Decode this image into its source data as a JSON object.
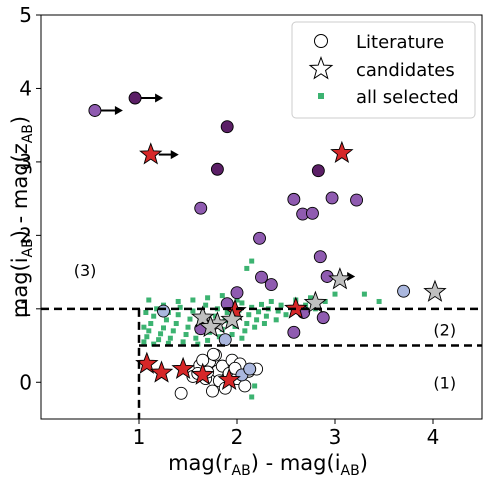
{
  "chart_data": {
    "type": "scatter",
    "xlabel_main": "mag(r",
    "xlabel_sub1": "AB",
    "xlabel_mid": ") - mag(i",
    "xlabel_sub2": "AB",
    "xlabel_end": ")",
    "ylabel_main": "mag(i",
    "ylabel_sub1": "AB",
    "ylabel_mid": ") - mag(z",
    "ylabel_sub2": "AB",
    "ylabel_end": ")",
    "xlim": [
      0,
      4.5
    ],
    "ylim": [
      -0.5,
      5
    ],
    "xticks": [
      1,
      2,
      3,
      4
    ],
    "yticks": [
      0,
      1,
      2,
      3,
      4,
      5
    ],
    "grid": false,
    "legend_position": "top-right",
    "legend": [
      {
        "label": "Literature",
        "marker": "circle"
      },
      {
        "label": "candidates",
        "marker": "star"
      },
      {
        "label": "all selected",
        "marker": "square"
      }
    ],
    "region_labels": [
      {
        "text": "(1)",
        "x": 4.12,
        "y": 0.0
      },
      {
        "text": "(2)",
        "x": 4.12,
        "y": 0.72
      },
      {
        "text": "(3)",
        "x": 0.45,
        "y": 1.53
      }
    ],
    "selection_boundaries": {
      "vertical_x": 1.0,
      "horizontal_y1": 0.5,
      "horizontal_y2": 1.0
    },
    "colors": {
      "all_selected": "#3cb371",
      "star_red": "#d62728",
      "star_grey": "#bfbfbf",
      "literature_fill": "#ffffff",
      "purple_light": "#8f5bb0",
      "purple_dark": "#5b1f66",
      "blue_light": "#aab7de"
    },
    "series": [
      {
        "name": "Literature",
        "marker": "circle",
        "points": [
          {
            "x": 1.43,
            "y": -0.15,
            "color": "#ffffff"
          },
          {
            "x": 1.55,
            "y": 0.08,
            "color": "#ffffff"
          },
          {
            "x": 1.62,
            "y": 0.23,
            "color": "#ffffff"
          },
          {
            "x": 1.68,
            "y": 0.05,
            "color": "#ffffff"
          },
          {
            "x": 1.72,
            "y": 0.28,
            "color": "#ffffff"
          },
          {
            "x": 1.75,
            "y": -0.12,
            "color": "#ffffff"
          },
          {
            "x": 1.78,
            "y": 0.37,
            "color": "#ffffff"
          },
          {
            "x": 1.8,
            "y": 0.15,
            "color": "#ffffff"
          },
          {
            "x": 1.82,
            "y": 0.02,
            "color": "#ffffff"
          },
          {
            "x": 1.85,
            "y": 0.22,
            "color": "#ffffff"
          },
          {
            "x": 1.88,
            "y": -0.08,
            "color": "#ffffff"
          },
          {
            "x": 1.92,
            "y": 0.12,
            "color": "#ffffff"
          },
          {
            "x": 1.95,
            "y": 0.3,
            "color": "#ffffff"
          },
          {
            "x": 2.0,
            "y": 0.05,
            "color": "#ffffff"
          },
          {
            "x": 2.03,
            "y": 0.25,
            "color": "#ffffff"
          },
          {
            "x": 2.08,
            "y": -0.05,
            "color": "#ffffff"
          },
          {
            "x": 2.12,
            "y": 0.15,
            "color": "#ffffff"
          },
          {
            "x": 2.2,
            "y": 0.18,
            "color": "#ffffff"
          },
          {
            "x": 1.7,
            "y": 0.14,
            "color": "#ffffff"
          },
          {
            "x": 1.98,
            "y": 0.19,
            "color": "#ffffff"
          },
          {
            "x": 1.76,
            "y": 0.38,
            "color": "#ffffff"
          },
          {
            "x": 1.65,
            "y": 0.3,
            "color": "#ffffff"
          },
          {
            "x": 1.6,
            "y": 0.12,
            "color": "#ffffff"
          }
        ]
      },
      {
        "name": "candidates",
        "marker": "star",
        "points": [
          {
            "x": 1.08,
            "y": 0.25,
            "color": "#d62728"
          },
          {
            "x": 1.23,
            "y": 0.13,
            "color": "#d62728"
          },
          {
            "x": 1.45,
            "y": 0.18,
            "color": "#d62728"
          },
          {
            "x": 1.65,
            "y": 0.1,
            "color": "#d62728"
          },
          {
            "x": 1.92,
            "y": 0.03,
            "color": "#d62728"
          },
          {
            "x": 1.98,
            "y": 0.97,
            "color": "#d62728"
          },
          {
            "x": 2.6,
            "y": 1.0,
            "color": "#d62728"
          },
          {
            "x": 1.12,
            "y": 3.1,
            "color": "#d62728"
          },
          {
            "x": 3.07,
            "y": 3.12,
            "color": "#d62728"
          },
          {
            "x": 1.65,
            "y": 0.88,
            "color": "#bfbfbf"
          },
          {
            "x": 1.8,
            "y": 0.8,
            "color": "#bfbfbf"
          },
          {
            "x": 1.95,
            "y": 0.85,
            "color": "#bfbfbf"
          },
          {
            "x": 1.73,
            "y": 0.75,
            "color": "#bfbfbf"
          },
          {
            "x": 2.8,
            "y": 1.08,
            "color": "#bfbfbf"
          },
          {
            "x": 3.05,
            "y": 1.4,
            "color": "#bfbfbf"
          },
          {
            "x": 4.02,
            "y": 1.23,
            "color": "#bfbfbf"
          }
        ]
      },
      {
        "name": "all selected",
        "marker": "square",
        "points": [
          {
            "x": 1.05,
            "y": 0.55
          },
          {
            "x": 1.08,
            "y": 0.62
          },
          {
            "x": 1.1,
            "y": 0.7
          },
          {
            "x": 1.12,
            "y": 0.8
          },
          {
            "x": 1.15,
            "y": 0.9
          },
          {
            "x": 1.18,
            "y": 1.0
          },
          {
            "x": 1.2,
            "y": 0.58
          },
          {
            "x": 1.22,
            "y": 0.66
          },
          {
            "x": 1.25,
            "y": 0.74
          },
          {
            "x": 1.28,
            "y": 0.85
          },
          {
            "x": 1.3,
            "y": 0.95
          },
          {
            "x": 1.32,
            "y": 0.6
          },
          {
            "x": 1.35,
            "y": 0.7
          },
          {
            "x": 1.38,
            "y": 0.8
          },
          {
            "x": 1.4,
            "y": 0.92
          },
          {
            "x": 1.42,
            "y": 1.02
          },
          {
            "x": 1.45,
            "y": 0.55
          },
          {
            "x": 1.48,
            "y": 0.65
          },
          {
            "x": 1.5,
            "y": 0.75
          },
          {
            "x": 1.52,
            "y": 0.86
          },
          {
            "x": 1.55,
            "y": 0.97
          },
          {
            "x": 1.58,
            "y": 0.6
          },
          {
            "x": 1.6,
            "y": 0.7
          },
          {
            "x": 1.62,
            "y": 0.82
          },
          {
            "x": 1.65,
            "y": 0.93
          },
          {
            "x": 1.68,
            "y": 1.05
          },
          {
            "x": 1.7,
            "y": 0.57
          },
          {
            "x": 1.72,
            "y": 0.68
          },
          {
            "x": 1.75,
            "y": 0.78
          },
          {
            "x": 1.78,
            "y": 0.9
          },
          {
            "x": 1.8,
            "y": 1.0
          },
          {
            "x": 1.82,
            "y": 0.62
          },
          {
            "x": 1.85,
            "y": 0.72
          },
          {
            "x": 1.88,
            "y": 0.84
          },
          {
            "x": 1.9,
            "y": 0.95
          },
          {
            "x": 1.92,
            "y": 1.05
          },
          {
            "x": 1.95,
            "y": 0.65
          },
          {
            "x": 1.98,
            "y": 0.76
          },
          {
            "x": 2.0,
            "y": 0.88
          },
          {
            "x": 2.02,
            "y": 0.98
          },
          {
            "x": 2.05,
            "y": 1.08
          },
          {
            "x": 2.08,
            "y": 0.7
          },
          {
            "x": 2.1,
            "y": 0.8
          },
          {
            "x": 2.12,
            "y": 0.92
          },
          {
            "x": 2.15,
            "y": 1.02
          },
          {
            "x": 2.18,
            "y": 0.75
          },
          {
            "x": 2.2,
            "y": 0.85
          },
          {
            "x": 2.22,
            "y": 0.96
          },
          {
            "x": 2.25,
            "y": 1.06
          },
          {
            "x": 2.28,
            "y": 0.8
          },
          {
            "x": 2.3,
            "y": 0.9
          },
          {
            "x": 2.32,
            "y": 1.0
          },
          {
            "x": 2.35,
            "y": 1.1
          },
          {
            "x": 2.4,
            "y": 0.85
          },
          {
            "x": 2.42,
            "y": 0.97
          },
          {
            "x": 2.45,
            "y": 1.05
          },
          {
            "x": 2.5,
            "y": 0.92
          },
          {
            "x": 2.55,
            "y": 1.02
          },
          {
            "x": 2.6,
            "y": 1.12
          },
          {
            "x": 2.65,
            "y": 0.95
          },
          {
            "x": 2.7,
            "y": 1.05
          },
          {
            "x": 2.75,
            "y": 1.15
          },
          {
            "x": 2.8,
            "y": 1.0
          },
          {
            "x": 2.9,
            "y": 1.1
          },
          {
            "x": 3.0,
            "y": 1.2
          },
          {
            "x": 3.3,
            "y": 1.2
          },
          {
            "x": 3.45,
            "y": 1.1
          },
          {
            "x": 2.1,
            "y": 1.55
          },
          {
            "x": 2.15,
            "y": 1.65
          },
          {
            "x": 1.05,
            "y": 0.75
          },
          {
            "x": 1.07,
            "y": 0.95
          },
          {
            "x": 1.1,
            "y": 1.12
          },
          {
            "x": 1.25,
            "y": 1.05
          },
          {
            "x": 1.4,
            "y": 1.1
          },
          {
            "x": 1.55,
            "y": 1.12
          },
          {
            "x": 1.7,
            "y": 1.15
          },
          {
            "x": 1.85,
            "y": 1.18
          },
          {
            "x": 2.0,
            "y": 1.12
          },
          {
            "x": 1.15,
            "y": 0.52
          },
          {
            "x": 1.3,
            "y": 0.53
          },
          {
            "x": 1.6,
            "y": 0.52
          },
          {
            "x": 1.9,
            "y": 0.55
          },
          {
            "x": 2.05,
            "y": 0.6
          },
          {
            "x": 1.95,
            "y": 0.35
          },
          {
            "x": 2.15,
            "y": -0.2
          },
          {
            "x": 1.75,
            "y": -0.15
          },
          {
            "x": 2.05,
            "y": 0.1
          },
          {
            "x": 2.18,
            "y": -0.05
          }
        ]
      },
      {
        "name": "purple circles",
        "marker": "circle",
        "points": [
          {
            "x": 0.55,
            "y": 3.7,
            "color": "#8f5bb0",
            "arrow": true
          },
          {
            "x": 0.96,
            "y": 3.87,
            "color": "#5b1f66",
            "arrow": true
          },
          {
            "x": 1.9,
            "y": 3.48,
            "color": "#5b1f66"
          },
          {
            "x": 1.8,
            "y": 2.9,
            "color": "#5b1f66"
          },
          {
            "x": 1.63,
            "y": 2.37,
            "color": "#8f5bb0"
          },
          {
            "x": 2.23,
            "y": 1.96,
            "color": "#8f5bb0"
          },
          {
            "x": 2.25,
            "y": 1.43,
            "color": "#8f5bb0"
          },
          {
            "x": 2.58,
            "y": 2.49,
            "color": "#8f5bb0"
          },
          {
            "x": 2.67,
            "y": 2.29,
            "color": "#8f5bb0"
          },
          {
            "x": 2.77,
            "y": 2.3,
            "color": "#8f5bb0"
          },
          {
            "x": 2.83,
            "y": 2.88,
            "color": "#5b1f66"
          },
          {
            "x": 2.97,
            "y": 2.51,
            "color": "#8f5bb0"
          },
          {
            "x": 3.22,
            "y": 2.48,
            "color": "#8f5bb0"
          },
          {
            "x": 2.85,
            "y": 1.71,
            "color": "#8f5bb0"
          },
          {
            "x": 2.92,
            "y": 1.44,
            "color": "#8f5bb0",
            "arrow": true
          },
          {
            "x": 2.35,
            "y": 1.33,
            "color": "#8f5bb0"
          },
          {
            "x": 1.9,
            "y": 1.07,
            "color": "#8f5bb0"
          },
          {
            "x": 2.0,
            "y": 1.22,
            "color": "#8f5bb0"
          },
          {
            "x": 2.58,
            "y": 0.68,
            "color": "#8f5bb0"
          },
          {
            "x": 2.68,
            "y": 0.95,
            "color": "#8f5bb0"
          },
          {
            "x": 2.88,
            "y": 0.88,
            "color": "#8f5bb0"
          },
          {
            "x": 1.63,
            "y": 0.73,
            "color": "#8f5bb0"
          }
        ]
      },
      {
        "name": "blue circles",
        "marker": "circle",
        "points": [
          {
            "x": 1.25,
            "y": 0.97,
            "color": "#aab7de"
          },
          {
            "x": 1.88,
            "y": 0.58,
            "color": "#aab7de"
          },
          {
            "x": 3.7,
            "y": 1.24,
            "color": "#aab7de"
          },
          {
            "x": 2.05,
            "y": 0.1,
            "color": "#aab7de"
          },
          {
            "x": 2.13,
            "y": 0.18,
            "color": "#aab7de"
          }
        ]
      }
    ]
  }
}
